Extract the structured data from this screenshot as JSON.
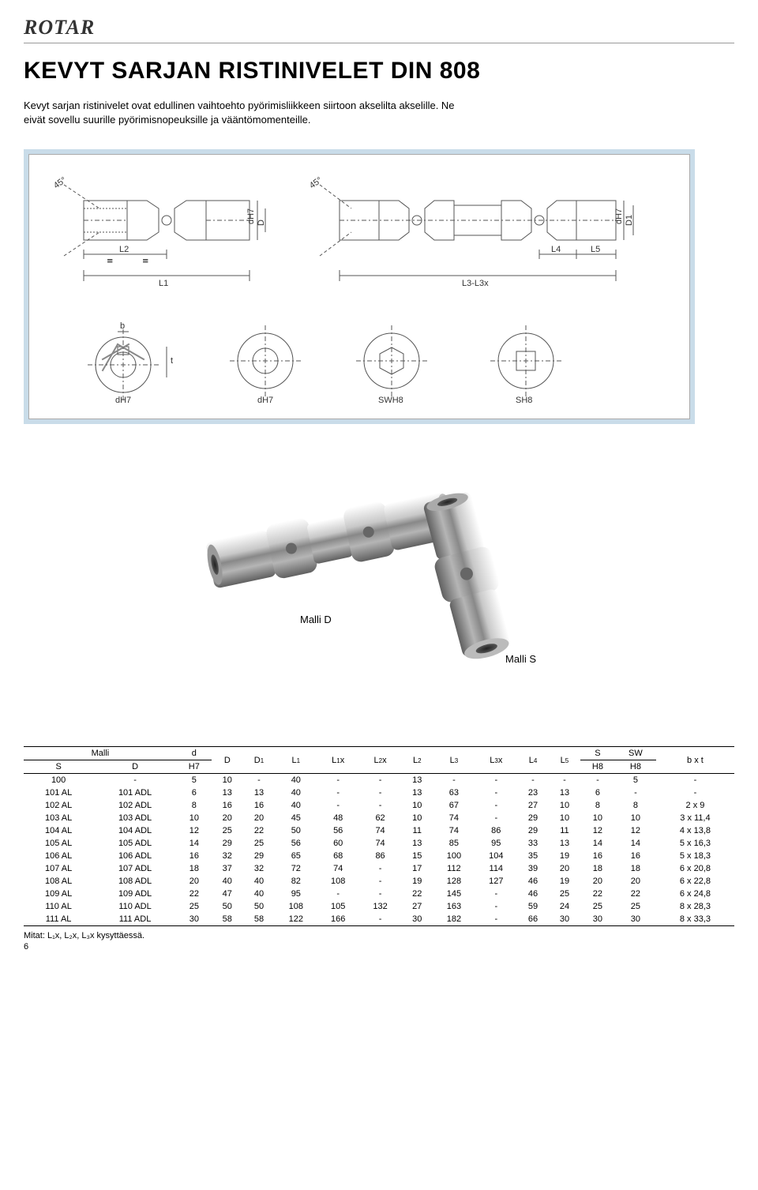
{
  "logo": "ROTAR",
  "title": "KEVYT SARJAN RISTINIVELET DIN 808",
  "intro": "Kevyt sarjan ristinivelet ovat edullinen vaihtoehto pyörimisliikkeen siirtoon akselilta akselille. Ne eivät sovellu suurille pyörimisnopeuksille ja vääntömomenteille.",
  "diagram": {
    "angle_label": "45°",
    "dims_single": {
      "dH7": "dH7",
      "D": "D",
      "L1": "L1",
      "L2": "L2",
      "eq": "="
    },
    "dims_double": {
      "dH7": "dH7",
      "D1": "D1",
      "L4": "L4",
      "L5": "L5",
      "L3L3x": "L3-L3x"
    },
    "bores": {
      "b": "b",
      "t": "t",
      "dH7": "dH7",
      "SWH8": "SWH8",
      "SH8": "SH8"
    }
  },
  "photo": {
    "modelD": "Malli D",
    "modelS": "Malli S"
  },
  "table": {
    "headers": {
      "malli": "Malli",
      "S": "S",
      "D": "D",
      "d_H7": "d",
      "d_H7_sub": "H7",
      "Dcol": "D",
      "D1": "D",
      "D1_sub": "1",
      "L1": "L",
      "L1_sub": "1",
      "L1x": "L",
      "L1x_sub": "1",
      "L1x_suf": "x",
      "L2x": "L",
      "L2x_sub": "2",
      "L2x_suf": "x",
      "L2": "L",
      "L2_sub": "2",
      "L3": "L",
      "L3_sub": "3",
      "L3x": "L",
      "L3x_sub": "3",
      "L3x_suf": "x",
      "L4": "L",
      "L4_sub": "4",
      "L5": "L",
      "L5_sub": "5",
      "Scol": "S",
      "S_sub": "H8",
      "SW": "SW",
      "SW_sub": "H8",
      "bxt": "b x t"
    },
    "rows": [
      {
        "s": "100",
        "d": "-",
        "dH7": "5",
        "Dc": "10",
        "D1": "-",
        "L1": "40",
        "L1x": "-",
        "L2x": "-",
        "L2": "13",
        "L3": "-",
        "L3x": "-",
        "L4": "-",
        "L5": "-",
        "Sc": "-",
        "SW": "5",
        "bxt": "-"
      },
      {
        "s": "101 AL",
        "d": "101 ADL",
        "dH7": "6",
        "Dc": "13",
        "D1": "13",
        "L1": "40",
        "L1x": "-",
        "L2x": "-",
        "L2": "13",
        "L3": "63",
        "L3x": "-",
        "L4": "23",
        "L5": "13",
        "Sc": "6",
        "SW": "-",
        "bxt": "-"
      },
      {
        "s": "102 AL",
        "d": "102 ADL",
        "dH7": "8",
        "Dc": "16",
        "D1": "16",
        "L1": "40",
        "L1x": "-",
        "L2x": "-",
        "L2": "10",
        "L3": "67",
        "L3x": "-",
        "L4": "27",
        "L5": "10",
        "Sc": "8",
        "SW": "8",
        "bxt": "2 x 9"
      },
      {
        "s": "103 AL",
        "d": "103 ADL",
        "dH7": "10",
        "Dc": "20",
        "D1": "20",
        "L1": "45",
        "L1x": "48",
        "L2x": "62",
        "L2": "10",
        "L3": "74",
        "L3x": "-",
        "L4": "29",
        "L5": "10",
        "Sc": "10",
        "SW": "10",
        "bxt": "3 x 11,4"
      },
      {
        "s": "104 AL",
        "d": "104 ADL",
        "dH7": "12",
        "Dc": "25",
        "D1": "22",
        "L1": "50",
        "L1x": "56",
        "L2x": "74",
        "L2": "11",
        "L3": "74",
        "L3x": "86",
        "L4": "29",
        "L5": "11",
        "Sc": "12",
        "SW": "12",
        "bxt": "4 x 13,8"
      },
      {
        "s": "105 AL",
        "d": "105 ADL",
        "dH7": "14",
        "Dc": "29",
        "D1": "25",
        "L1": "56",
        "L1x": "60",
        "L2x": "74",
        "L2": "13",
        "L3": "85",
        "L3x": "95",
        "L4": "33",
        "L5": "13",
        "Sc": "14",
        "SW": "14",
        "bxt": "5 x 16,3"
      },
      {
        "s": "106 AL",
        "d": "106 ADL",
        "dH7": "16",
        "Dc": "32",
        "D1": "29",
        "L1": "65",
        "L1x": "68",
        "L2x": "86",
        "L2": "15",
        "L3": "100",
        "L3x": "104",
        "L4": "35",
        "L5": "19",
        "Sc": "16",
        "SW": "16",
        "bxt": "5 x 18,3"
      },
      {
        "s": "107 AL",
        "d": "107 ADL",
        "dH7": "18",
        "Dc": "37",
        "D1": "32",
        "L1": "72",
        "L1x": "74",
        "L2x": "-",
        "L2": "17",
        "L3": "112",
        "L3x": "114",
        "L4": "39",
        "L5": "20",
        "Sc": "18",
        "SW": "18",
        "bxt": "6 x 20,8"
      },
      {
        "s": "108 AL",
        "d": "108 ADL",
        "dH7": "20",
        "Dc": "40",
        "D1": "40",
        "L1": "82",
        "L1x": "108",
        "L2x": "-",
        "L2": "19",
        "L3": "128",
        "L3x": "127",
        "L4": "46",
        "L5": "19",
        "Sc": "20",
        "SW": "20",
        "bxt": "6 x 22,8"
      },
      {
        "s": "109 AL",
        "d": "109 ADL",
        "dH7": "22",
        "Dc": "47",
        "D1": "40",
        "L1": "95",
        "L1x": "-",
        "L2x": "-",
        "L2": "22",
        "L3": "145",
        "L3x": "-",
        "L4": "46",
        "L5": "25",
        "Sc": "22",
        "SW": "22",
        "bxt": "6 x 24,8"
      },
      {
        "s": "110 AL",
        "d": "110 ADL",
        "dH7": "25",
        "Dc": "50",
        "D1": "50",
        "L1": "108",
        "L1x": "105",
        "L2x": "132",
        "L2": "27",
        "L3": "163",
        "L3x": "-",
        "L4": "59",
        "L5": "24",
        "Sc": "25",
        "SW": "25",
        "bxt": "8 x 28,3"
      },
      {
        "s": "111 AL",
        "d": "111 ADL",
        "dH7": "30",
        "Dc": "58",
        "D1": "58",
        "L1": "122",
        "L1x": "166",
        "L2x": "-",
        "L2": "30",
        "L3": "182",
        "L3x": "-",
        "L4": "66",
        "L5": "30",
        "Sc": "30",
        "SW": "30",
        "bxt": "8 x 33,3"
      }
    ]
  },
  "footnote": "Mitat: L₁x, L₂x, L₃x kysyttäessä.",
  "pagenum": "6",
  "colors": {
    "frame_bg": "#c9dce9",
    "line": "#555"
  }
}
